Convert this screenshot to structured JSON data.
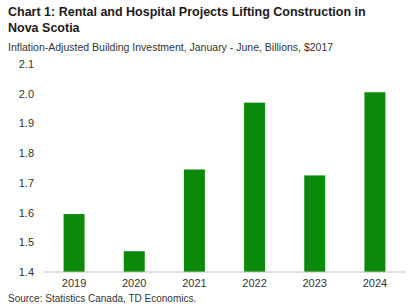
{
  "chart_data": {
    "type": "bar",
    "title": "Chart 1: Rental and Hospital Projects Lifting Construction in Nova Scotia",
    "subtitle": "Inflation-Adjusted Building Investment, January - June, Billions, $2017",
    "source": "Source: Statistics Canada, TD Economics.",
    "categories": [
      "2019",
      "2020",
      "2021",
      "2022",
      "2023",
      "2024"
    ],
    "values": [
      1.595,
      1.47,
      1.745,
      1.97,
      1.725,
      2.005
    ],
    "color": "#0b8a0b",
    "ylim": [
      1.4,
      2.1
    ],
    "yticks": [
      1.4,
      1.5,
      1.6,
      1.7,
      1.8,
      1.9,
      {
        "value": 2,
        "label": "2.0"
      },
      2.1
    ],
    "grid": false
  }
}
